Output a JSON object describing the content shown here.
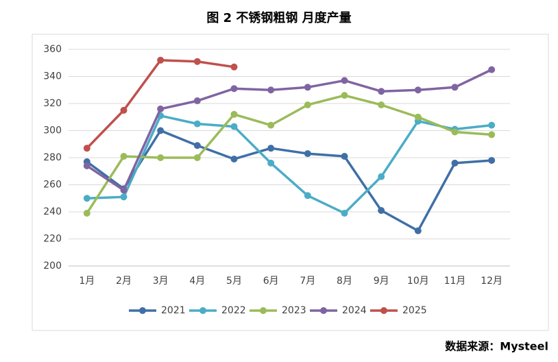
{
  "chart_data": {
    "type": "line",
    "title": "图 2 不锈钢粗钢 月度产量",
    "source": "数据来源：Mysteel",
    "categories": [
      "1月",
      "2月",
      "3月",
      "4月",
      "5月",
      "6月",
      "7月",
      "8月",
      "9月",
      "10月",
      "11月",
      "12月"
    ],
    "series": [
      {
        "name": "2021",
        "color": "#3f6fa6",
        "values": [
          277,
          257,
          300,
          289,
          279,
          287,
          283,
          281,
          241,
          226,
          276,
          278
        ]
      },
      {
        "name": "2022",
        "color": "#4bacc6",
        "values": [
          250,
          251,
          311,
          305,
          303,
          276,
          252,
          239,
          266,
          307,
          301,
          304
        ]
      },
      {
        "name": "2023",
        "color": "#9bbb59",
        "values": [
          239,
          281,
          280,
          280,
          312,
          304,
          319,
          326,
          319,
          310,
          299,
          297
        ]
      },
      {
        "name": "2024",
        "color": "#8064a2",
        "values": [
          274,
          256,
          316,
          322,
          331,
          330,
          332,
          337,
          329,
          330,
          332,
          345
        ]
      },
      {
        "name": "2025",
        "color": "#c0504d",
        "values": [
          287,
          315,
          352,
          351,
          347,
          null,
          null,
          null,
          null,
          null,
          null,
          null
        ]
      }
    ],
    "ylim": [
      200,
      360
    ],
    "yticks": [
      200,
      220,
      240,
      260,
      280,
      300,
      320,
      340,
      360
    ],
    "grid": true,
    "legend": "bottom"
  }
}
